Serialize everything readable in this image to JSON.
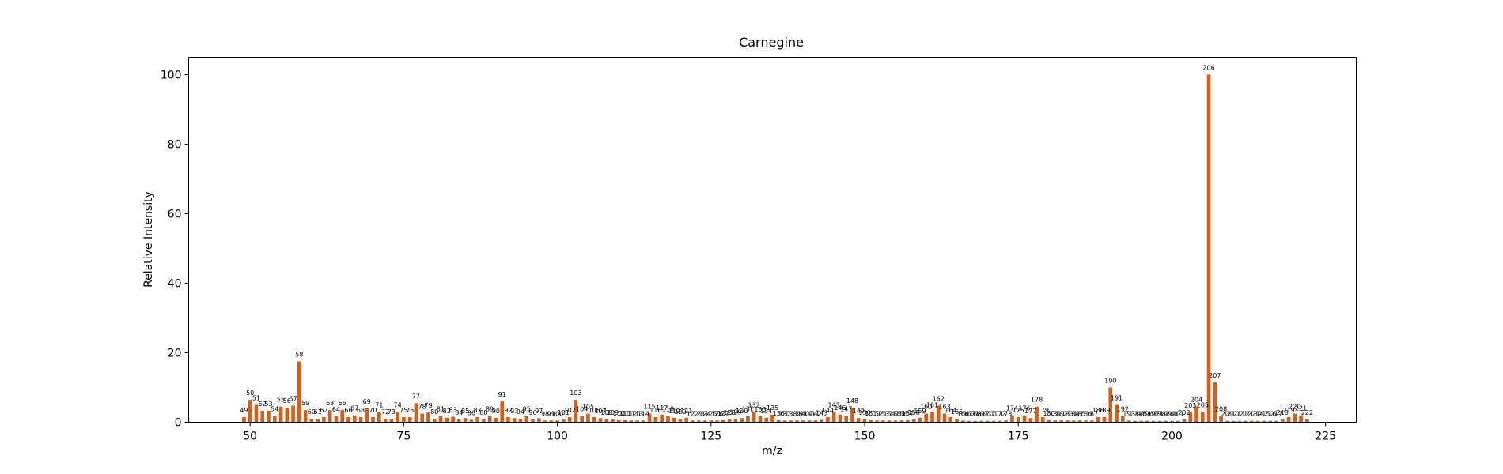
{
  "chart_data": {
    "type": "bar",
    "title": "Carnegine",
    "xlabel": "m/z",
    "ylabel": "Relative Intensity",
    "xlim": [
      40,
      230
    ],
    "ylim": [
      0,
      105
    ],
    "xticks": [
      50,
      75,
      100,
      125,
      150,
      175,
      200,
      225
    ],
    "yticks": [
      0,
      20,
      40,
      60,
      80,
      100
    ],
    "bar_color": "#d2601a",
    "grid": false,
    "legend": "none",
    "peaks": [
      {
        "mz": 49,
        "intensity": 1.5
      },
      {
        "mz": 50,
        "intensity": 6.5
      },
      {
        "mz": 51,
        "intensity": 5.0
      },
      {
        "mz": 52,
        "intensity": 3.3
      },
      {
        "mz": 53,
        "intensity": 3.3
      },
      {
        "mz": 54,
        "intensity": 1.8
      },
      {
        "mz": 55,
        "intensity": 4.5
      },
      {
        "mz": 56,
        "intensity": 4.2
      },
      {
        "mz": 57,
        "intensity": 4.8
      },
      {
        "mz": 58,
        "intensity": 17.5
      },
      {
        "mz": 59,
        "intensity": 3.5
      },
      {
        "mz": 60,
        "intensity": 1.0
      },
      {
        "mz": 61,
        "intensity": 1.0
      },
      {
        "mz": 62,
        "intensity": 1.5
      },
      {
        "mz": 63,
        "intensity": 3.5
      },
      {
        "mz": 64,
        "intensity": 1.7
      },
      {
        "mz": 65,
        "intensity": 3.5
      },
      {
        "mz": 66,
        "intensity": 1.5
      },
      {
        "mz": 67,
        "intensity": 2.0
      },
      {
        "mz": 68,
        "intensity": 1.5
      },
      {
        "mz": 69,
        "intensity": 4.0
      },
      {
        "mz": 70,
        "intensity": 1.5
      },
      {
        "mz": 71,
        "intensity": 3.0
      },
      {
        "mz": 72,
        "intensity": 1.0
      },
      {
        "mz": 73,
        "intensity": 1.0
      },
      {
        "mz": 74,
        "intensity": 3.0
      },
      {
        "mz": 75,
        "intensity": 1.5
      },
      {
        "mz": 76,
        "intensity": 1.5
      },
      {
        "mz": 77,
        "intensity": 5.5
      },
      {
        "mz": 78,
        "intensity": 2.5
      },
      {
        "mz": 79,
        "intensity": 2.8
      },
      {
        "mz": 80,
        "intensity": 1.0
      },
      {
        "mz": 81,
        "intensity": 1.8
      },
      {
        "mz": 82,
        "intensity": 1.3
      },
      {
        "mz": 83,
        "intensity": 1.6
      },
      {
        "mz": 84,
        "intensity": 0.8
      },
      {
        "mz": 85,
        "intensity": 1.2
      },
      {
        "mz": 86,
        "intensity": 0.7
      },
      {
        "mz": 87,
        "intensity": 1.5
      },
      {
        "mz": 88,
        "intensity": 0.8
      },
      {
        "mz": 89,
        "intensity": 1.8
      },
      {
        "mz": 90,
        "intensity": 1.3
      },
      {
        "mz": 91,
        "intensity": 6.0
      },
      {
        "mz": 92,
        "intensity": 1.5
      },
      {
        "mz": 93,
        "intensity": 1.2
      },
      {
        "mz": 94,
        "intensity": 1.0
      },
      {
        "mz": 95,
        "intensity": 1.8
      },
      {
        "mz": 96,
        "intensity": 0.8
      },
      {
        "mz": 97,
        "intensity": 1.2
      },
      {
        "mz": 98,
        "intensity": 0.5
      },
      {
        "mz": 99,
        "intensity": 0.5
      },
      {
        "mz": 100,
        "intensity": 0.5
      },
      {
        "mz": 101,
        "intensity": 0.8
      },
      {
        "mz": 102,
        "intensity": 1.5
      },
      {
        "mz": 103,
        "intensity": 6.5
      },
      {
        "mz": 104,
        "intensity": 1.8
      },
      {
        "mz": 105,
        "intensity": 2.5
      },
      {
        "mz": 106,
        "intensity": 1.5
      },
      {
        "mz": 107,
        "intensity": 1.2
      },
      {
        "mz": 108,
        "intensity": 0.8
      },
      {
        "mz": 109,
        "intensity": 0.8
      },
      {
        "mz": 110,
        "intensity": 0.6
      },
      {
        "mz": 111,
        "intensity": 0.6
      },
      {
        "mz": 112,
        "intensity": 0.5
      },
      {
        "mz": 113,
        "intensity": 0.5
      },
      {
        "mz": 114,
        "intensity": 0.5
      },
      {
        "mz": 115,
        "intensity": 2.5
      },
      {
        "mz": 116,
        "intensity": 1.5
      },
      {
        "mz": 117,
        "intensity": 2.2
      },
      {
        "mz": 118,
        "intensity": 1.8
      },
      {
        "mz": 119,
        "intensity": 1.3
      },
      {
        "mz": 120,
        "intensity": 1.0
      },
      {
        "mz": 121,
        "intensity": 1.3
      },
      {
        "mz": 122,
        "intensity": 0.5
      },
      {
        "mz": 123,
        "intensity": 0.5
      },
      {
        "mz": 124,
        "intensity": 0.5
      },
      {
        "mz": 125,
        "intensity": 0.5
      },
      {
        "mz": 126,
        "intensity": 0.5
      },
      {
        "mz": 127,
        "intensity": 0.6
      },
      {
        "mz": 128,
        "intensity": 0.8
      },
      {
        "mz": 129,
        "intensity": 0.9
      },
      {
        "mz": 130,
        "intensity": 1.2
      },
      {
        "mz": 131,
        "intensity": 1.8
      },
      {
        "mz": 132,
        "intensity": 3.0
      },
      {
        "mz": 133,
        "intensity": 1.7
      },
      {
        "mz": 134,
        "intensity": 1.3
      },
      {
        "mz": 135,
        "intensity": 2.2
      },
      {
        "mz": 136,
        "intensity": 0.6
      },
      {
        "mz": 137,
        "intensity": 0.5
      },
      {
        "mz": 138,
        "intensity": 0.5
      },
      {
        "mz": 139,
        "intensity": 0.5
      },
      {
        "mz": 140,
        "intensity": 0.5
      },
      {
        "mz": 141,
        "intensity": 0.5
      },
      {
        "mz": 142,
        "intensity": 0.5
      },
      {
        "mz": 143,
        "intensity": 0.7
      },
      {
        "mz": 144,
        "intensity": 1.5
      },
      {
        "mz": 145,
        "intensity": 3.0
      },
      {
        "mz": 146,
        "intensity": 2.2
      },
      {
        "mz": 147,
        "intensity": 1.8
      },
      {
        "mz": 148,
        "intensity": 4.2
      },
      {
        "mz": 149,
        "intensity": 1.2
      },
      {
        "mz": 150,
        "intensity": 0.8
      },
      {
        "mz": 151,
        "intensity": 0.6
      },
      {
        "mz": 152,
        "intensity": 0.5
      },
      {
        "mz": 153,
        "intensity": 0.5
      },
      {
        "mz": 154,
        "intensity": 0.5
      },
      {
        "mz": 155,
        "intensity": 0.5
      },
      {
        "mz": 156,
        "intensity": 0.5
      },
      {
        "mz": 157,
        "intensity": 0.6
      },
      {
        "mz": 158,
        "intensity": 0.8
      },
      {
        "mz": 159,
        "intensity": 1.3
      },
      {
        "mz": 160,
        "intensity": 2.5
      },
      {
        "mz": 161,
        "intensity": 3.0
      },
      {
        "mz": 162,
        "intensity": 4.8
      },
      {
        "mz": 163,
        "intensity": 2.5
      },
      {
        "mz": 164,
        "intensity": 1.5
      },
      {
        "mz": 165,
        "intensity": 1.0
      },
      {
        "mz": 166,
        "intensity": 0.5
      },
      {
        "mz": 167,
        "intensity": 0.4
      },
      {
        "mz": 168,
        "intensity": 0.4
      },
      {
        "mz": 169,
        "intensity": 0.4
      },
      {
        "mz": 170,
        "intensity": 0.4
      },
      {
        "mz": 171,
        "intensity": 0.4
      },
      {
        "mz": 172,
        "intensity": 0.4
      },
      {
        "mz": 173,
        "intensity": 0.5
      },
      {
        "mz": 174,
        "intensity": 2.0
      },
      {
        "mz": 175,
        "intensity": 1.5
      },
      {
        "mz": 176,
        "intensity": 2.0
      },
      {
        "mz": 177,
        "intensity": 1.2
      },
      {
        "mz": 178,
        "intensity": 4.5
      },
      {
        "mz": 179,
        "intensity": 1.5
      },
      {
        "mz": 180,
        "intensity": 0.6
      },
      {
        "mz": 181,
        "intensity": 0.5
      },
      {
        "mz": 182,
        "intensity": 0.5
      },
      {
        "mz": 183,
        "intensity": 0.5
      },
      {
        "mz": 184,
        "intensity": 0.5
      },
      {
        "mz": 185,
        "intensity": 0.5
      },
      {
        "mz": 186,
        "intensity": 0.5
      },
      {
        "mz": 187,
        "intensity": 0.5
      },
      {
        "mz": 188,
        "intensity": 1.5
      },
      {
        "mz": 189,
        "intensity": 1.5
      },
      {
        "mz": 190,
        "intensity": 10.0
      },
      {
        "mz": 191,
        "intensity": 5.0
      },
      {
        "mz": 192,
        "intensity": 1.8
      },
      {
        "mz": 193,
        "intensity": 0.5
      },
      {
        "mz": 194,
        "intensity": 0.4
      },
      {
        "mz": 195,
        "intensity": 0.4
      },
      {
        "mz": 196,
        "intensity": 0.4
      },
      {
        "mz": 197,
        "intensity": 0.4
      },
      {
        "mz": 198,
        "intensity": 0.4
      },
      {
        "mz": 199,
        "intensity": 0.4
      },
      {
        "mz": 200,
        "intensity": 0.4
      },
      {
        "mz": 201,
        "intensity": 0.4
      },
      {
        "mz": 202,
        "intensity": 0.8
      },
      {
        "mz": 203,
        "intensity": 2.8
      },
      {
        "mz": 204,
        "intensity": 4.5
      },
      {
        "mz": 205,
        "intensity": 3.0
      },
      {
        "mz": 206,
        "intensity": 100.0
      },
      {
        "mz": 207,
        "intensity": 11.5
      },
      {
        "mz": 208,
        "intensity": 1.8
      },
      {
        "mz": 209,
        "intensity": 0.4
      },
      {
        "mz": 210,
        "intensity": 0.4
      },
      {
        "mz": 211,
        "intensity": 0.4
      },
      {
        "mz": 212,
        "intensity": 0.4
      },
      {
        "mz": 213,
        "intensity": 0.4
      },
      {
        "mz": 214,
        "intensity": 0.4
      },
      {
        "mz": 215,
        "intensity": 0.4
      },
      {
        "mz": 216,
        "intensity": 0.4
      },
      {
        "mz": 217,
        "intensity": 0.4
      },
      {
        "mz": 218,
        "intensity": 0.8
      },
      {
        "mz": 219,
        "intensity": 1.5
      },
      {
        "mz": 220,
        "intensity": 2.5
      },
      {
        "mz": 221,
        "intensity": 2.0
      },
      {
        "mz": 222,
        "intensity": 0.8
      }
    ]
  }
}
